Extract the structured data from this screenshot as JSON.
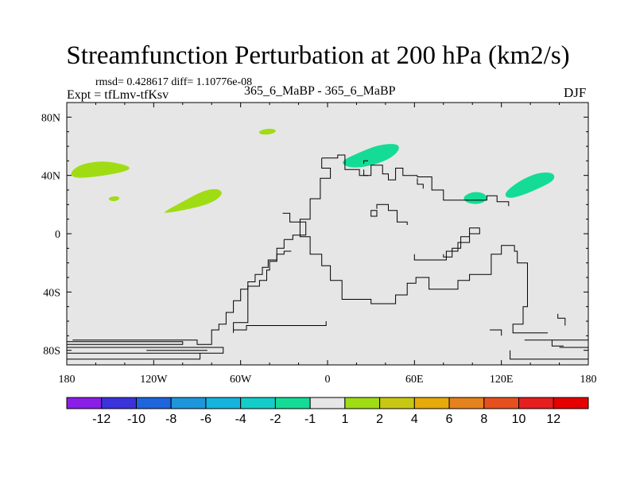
{
  "chart_data": {
    "type": "heatmap",
    "title": "Streamfunction Perturbation at 200 hPa (km2/s)",
    "stats_text": "rmsd= 0.428617 diff= 1.10776e-08",
    "experiment_text": "Expt = tfLmv-tfKsv",
    "center_label": "365_6_MaBP - 365_6_MaBP",
    "season": "DJF",
    "xlim": [
      -180,
      180
    ],
    "ylim": [
      -90,
      90
    ],
    "x_ticks": [
      {
        "value": -180,
        "label": "180"
      },
      {
        "value": -120,
        "label": "120W"
      },
      {
        "value": -60,
        "label": "60W"
      },
      {
        "value": 0,
        "label": "0"
      },
      {
        "value": 60,
        "label": "60E"
      },
      {
        "value": 120,
        "label": "120E"
      },
      {
        "value": 180,
        "label": "180"
      }
    ],
    "y_ticks": [
      {
        "value": 80,
        "label": "80N"
      },
      {
        "value": 40,
        "label": "40N"
      },
      {
        "value": 0,
        "label": "0"
      },
      {
        "value": -40,
        "label": "40S"
      },
      {
        "value": -80,
        "label": "80S"
      }
    ],
    "colorbar": {
      "levels": [
        "-12",
        "-10",
        "-8",
        "-6",
        "-4",
        "-2",
        "-1",
        "1",
        "2",
        "4",
        "6",
        "8",
        "10",
        "12"
      ],
      "colors": [
        "#8a1ee6",
        "#3c32dc",
        "#1e64dc",
        "#1e96dc",
        "#14b4dc",
        "#14cdc8",
        "#14dc96",
        "#e6e6e6",
        "#a0dc14",
        "#c8c814",
        "#e6aa0a",
        "#e6821e",
        "#e6501e",
        "#e61e1e",
        "#e60000"
      ]
    },
    "anomaly_regions": [
      {
        "name": "north-pacific-positive",
        "color": "#a0dc14",
        "polygon": [
          [
            -178,
            42
          ],
          [
            -170,
            48
          ],
          [
            -155,
            50
          ],
          [
            -142,
            48
          ],
          [
            -135,
            45
          ],
          [
            -142,
            42
          ],
          [
            -160,
            39
          ],
          [
            -175,
            38
          ]
        ]
      },
      {
        "name": "small-pacific-positive",
        "color": "#a0dc14",
        "polygon": [
          [
            -151,
            25
          ],
          [
            -145,
            26
          ],
          [
            -143,
            24
          ],
          [
            -147,
            22
          ],
          [
            -151,
            23
          ]
        ]
      },
      {
        "name": "central-pacific-positive",
        "color": "#a0dc14",
        "polygon": [
          [
            -113,
            15
          ],
          [
            -100,
            22
          ],
          [
            -85,
            30
          ],
          [
            -75,
            31
          ],
          [
            -72,
            27
          ],
          [
            -80,
            21
          ],
          [
            -95,
            17
          ],
          [
            -112,
            14
          ]
        ]
      },
      {
        "name": "arctic-positive",
        "color": "#a0dc14",
        "polygon": [
          [
            -48,
            70
          ],
          [
            -43,
            72
          ],
          [
            -37,
            72
          ],
          [
            -35,
            70
          ],
          [
            -40,
            68
          ],
          [
            -46,
            68
          ]
        ]
      },
      {
        "name": "europe-negative",
        "color": "#14dc96",
        "polygon": [
          [
            10,
            50
          ],
          [
            20,
            55
          ],
          [
            35,
            61
          ],
          [
            48,
            62
          ],
          [
            50,
            58
          ],
          [
            44,
            52
          ],
          [
            32,
            47
          ],
          [
            18,
            45
          ],
          [
            11,
            47
          ]
        ]
      },
      {
        "name": "india-negative",
        "color": "#14dc96",
        "polygon": [
          [
            93,
            25
          ],
          [
            100,
            29
          ],
          [
            108,
            28
          ],
          [
            111,
            24
          ],
          [
            105,
            20
          ],
          [
            96,
            21
          ]
        ]
      },
      {
        "name": "west-pacific-negative",
        "color": "#14dc96",
        "polygon": [
          [
            122,
            28
          ],
          [
            132,
            36
          ],
          [
            145,
            42
          ],
          [
            156,
            42
          ],
          [
            157,
            37
          ],
          [
            148,
            32
          ],
          [
            134,
            26
          ],
          [
            124,
            24
          ]
        ]
      }
    ],
    "coastlines": [
      [
        [
          -4,
          52
        ],
        [
          -4,
          45
        ],
        [
          2,
          45
        ],
        [
          2,
          38
        ],
        [
          -5,
          38
        ],
        [
          -5,
          24
        ],
        [
          -12,
          24
        ],
        [
          -12,
          10
        ],
        [
          -19,
          10
        ],
        [
          -19,
          -2
        ],
        [
          -12,
          -2
        ],
        [
          -12,
          -14
        ],
        [
          -4,
          -14
        ],
        [
          -4,
          -22
        ],
        [
          2,
          -22
        ],
        [
          2,
          -32
        ],
        [
          10,
          -32
        ],
        [
          10,
          -45
        ],
        [
          20,
          -45
        ],
        [
          30,
          -45
        ],
        [
          30,
          -48
        ],
        [
          47,
          -48
        ],
        [
          47,
          -42
        ],
        [
          55,
          -42
        ],
        [
          55,
          -34
        ],
        [
          61,
          -34
        ],
        [
          61,
          -30
        ],
        [
          70,
          -30
        ],
        [
          70,
          -38
        ],
        [
          90,
          -38
        ],
        [
          90,
          -32
        ],
        [
          98,
          -32
        ],
        [
          98,
          -28
        ],
        [
          113,
          -28
        ],
        [
          113,
          -14
        ],
        [
          120,
          -14
        ],
        [
          120,
          -8
        ],
        [
          129,
          -8
        ],
        [
          129,
          -12
        ],
        [
          131,
          -12
        ],
        [
          131,
          -20
        ],
        [
          138,
          -20
        ],
        [
          138,
          -50
        ],
        [
          135,
          -50
        ],
        [
          135,
          -62
        ],
        [
          128,
          -62
        ],
        [
          128,
          -68
        ],
        [
          152,
          -68
        ]
      ],
      [
        [
          -4,
          52
        ],
        [
          7,
          52
        ],
        [
          7,
          54
        ],
        [
          12,
          54
        ],
        [
          12,
          44
        ],
        [
          22,
          44
        ],
        [
          22,
          40
        ],
        [
          30,
          40
        ],
        [
          30,
          47
        ],
        [
          38,
          47
        ],
        [
          38,
          41
        ],
        [
          42,
          41
        ],
        [
          42,
          37
        ],
        [
          47,
          37
        ],
        [
          47,
          45
        ],
        [
          52,
          45
        ],
        [
          52,
          40
        ],
        [
          62,
          40
        ]
      ],
      [
        [
          -30,
          -4
        ],
        [
          -30,
          -10
        ],
        [
          -35,
          -10
        ],
        [
          -35,
          -18
        ],
        [
          -41,
          -18
        ],
        [
          -41,
          -23
        ],
        [
          -45,
          -23
        ],
        [
          -45,
          -28
        ],
        [
          -50,
          -28
        ],
        [
          -50,
          -33
        ],
        [
          -55,
          -33
        ],
        [
          -55,
          -38
        ],
        [
          -60,
          -38
        ],
        [
          -60,
          -46
        ],
        [
          -65,
          -46
        ],
        [
          -65,
          -54
        ],
        [
          -70,
          -54
        ],
        [
          -70,
          -62
        ],
        [
          -75,
          -62
        ],
        [
          -75,
          -66
        ],
        [
          -80,
          -66
        ],
        [
          -80,
          -76
        ],
        [
          -90,
          -76
        ],
        [
          -90,
          -73
        ],
        [
          -176,
          -73
        ]
      ],
      [
        [
          -30,
          -4
        ],
        [
          -24,
          -4
        ],
        [
          -24,
          -1
        ],
        [
          -15,
          -1
        ],
        [
          -15,
          8
        ],
        [
          -26,
          8
        ],
        [
          -26,
          14
        ],
        [
          -31,
          14
        ]
      ],
      [
        [
          -65,
          -68
        ],
        [
          -65,
          -61
        ],
        [
          -55,
          -61
        ],
        [
          -55,
          -36
        ],
        [
          -47,
          -36
        ],
        [
          -47,
          -32
        ],
        [
          -42,
          -32
        ],
        [
          -42,
          -25
        ],
        [
          -40,
          -25
        ],
        [
          -40,
          -19
        ],
        [
          -35,
          -19
        ],
        [
          -35,
          -14
        ],
        [
          -30,
          -14
        ],
        [
          -30,
          -12
        ],
        [
          -25,
          -12
        ]
      ],
      [
        [
          -180,
          -74
        ],
        [
          -100,
          -74
        ],
        [
          -100,
          -76
        ],
        [
          -180,
          -76
        ]
      ],
      [
        [
          -180,
          -78
        ],
        [
          -72,
          -78
        ],
        [
          -72,
          -82
        ],
        [
          -180,
          -82
        ]
      ],
      [
        [
          -180,
          -84
        ],
        [
          -180,
          -82
        ]
      ],
      [
        [
          -125,
          -80
        ],
        [
          -83,
          -80
        ]
      ],
      [
        [
          -180,
          -86
        ],
        [
          -88,
          -86
        ],
        [
          -88,
          -82
        ]
      ],
      [
        [
          -1,
          -60
        ],
        [
          -1,
          -63
        ],
        [
          -56,
          -63
        ],
        [
          -56,
          -66
        ],
        [
          -65,
          -66
        ]
      ],
      [
        [
          126,
          -80
        ],
        [
          126,
          -86
        ],
        [
          180,
          -86
        ]
      ],
      [
        [
          136,
          -73
        ],
        [
          180,
          -73
        ]
      ],
      [
        [
          160,
          -78
        ],
        [
          180,
          -78
        ]
      ],
      [
        [
          155,
          -73
        ],
        [
          155,
          -77
        ],
        [
          163,
          -77
        ]
      ],
      [
        [
          159,
          -55
        ],
        [
          159,
          -58
        ],
        [
          164,
          -58
        ],
        [
          164,
          -63
        ]
      ],
      [
        [
          112,
          -66
        ],
        [
          120,
          -66
        ],
        [
          120,
          -70
        ]
      ],
      [
        [
          62,
          40
        ],
        [
          62,
          39
        ],
        [
          72,
          39
        ],
        [
          72,
          30
        ],
        [
          80,
          30
        ],
        [
          80,
          23
        ],
        [
          110,
          23
        ],
        [
          110,
          26
        ],
        [
          117,
          26
        ],
        [
          117,
          22
        ],
        [
          125,
          22
        ],
        [
          125,
          19
        ]
      ],
      [
        [
          60,
          -14
        ],
        [
          60,
          -18
        ],
        [
          82,
          -18
        ],
        [
          82,
          -12
        ],
        [
          90,
          -12
        ],
        [
          90,
          -6
        ],
        [
          98,
          -6
        ],
        [
          98,
          0
        ],
        [
          105,
          0
        ],
        [
          105,
          4
        ],
        [
          98,
          4
        ],
        [
          98,
          -2
        ],
        [
          92,
          -2
        ],
        [
          92,
          -10
        ],
        [
          86,
          -10
        ],
        [
          86,
          -16
        ],
        [
          80,
          -16
        ],
        [
          80,
          -14
        ]
      ],
      [
        [
          33,
          12
        ],
        [
          30,
          12
        ],
        [
          30,
          16
        ],
        [
          34,
          16
        ],
        [
          34,
          12
        ],
        [
          33,
          12
        ]
      ],
      [
        [
          34,
          17
        ],
        [
          34,
          20
        ],
        [
          42,
          20
        ],
        [
          42,
          16
        ],
        [
          48,
          16
        ],
        [
          48,
          8
        ],
        [
          55,
          8
        ],
        [
          55,
          6
        ]
      ],
      [
        [
          62,
          38
        ],
        [
          62,
          34
        ],
        [
          66,
          34
        ],
        [
          66,
          31
        ]
      ],
      [
        [
          25,
          48
        ],
        [
          25,
          50
        ],
        [
          28,
          50
        ]
      ],
      [
        [
          25,
          44
        ],
        [
          25,
          40
        ],
        [
          28,
          40
        ]
      ]
    ]
  }
}
